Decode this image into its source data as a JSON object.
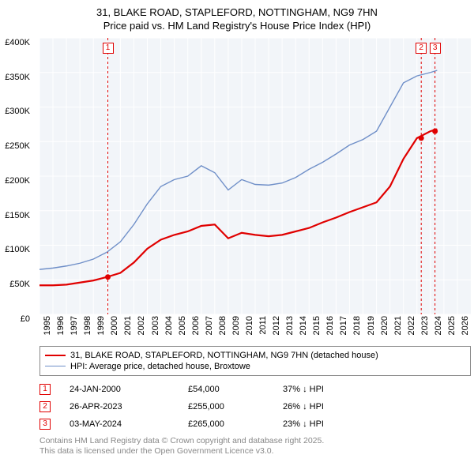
{
  "title_line1": "31, BLAKE ROAD, STAPLEFORD, NOTTINGHAM, NG9 7HN",
  "title_line2": "Price paid vs. HM Land Registry's House Price Index (HPI)",
  "chart": {
    "type": "line",
    "background_color": "#f2f5f9",
    "grid_color": "#ffffff",
    "x_start": 1995,
    "x_end": 2027,
    "x_ticks": [
      1995,
      1996,
      1997,
      1998,
      1999,
      2000,
      2001,
      2002,
      2003,
      2004,
      2005,
      2006,
      2007,
      2008,
      2009,
      2010,
      2011,
      2012,
      2013,
      2014,
      2015,
      2016,
      2017,
      2018,
      2019,
      2020,
      2021,
      2022,
      2023,
      2024,
      2025,
      2026
    ],
    "y_min": 0,
    "y_max": 400000,
    "y_ticks": [
      0,
      50000,
      100000,
      150000,
      200000,
      250000,
      300000,
      350000,
      400000
    ],
    "y_tick_labels": [
      "£0",
      "£50K",
      "£100K",
      "£150K",
      "£200K",
      "£250K",
      "£300K",
      "£350K",
      "£400K"
    ],
    "series": [
      {
        "name": "red",
        "label": "31, BLAKE ROAD, STAPLEFORD, NOTTINGHAM, NG9 7HN (detached house)",
        "color": "#e00000",
        "width": 2.2,
        "data": [
          [
            1995,
            42000
          ],
          [
            1996,
            42000
          ],
          [
            1997,
            43000
          ],
          [
            1998,
            46000
          ],
          [
            1999,
            49000
          ],
          [
            2000,
            54000
          ],
          [
            2001,
            60000
          ],
          [
            2002,
            75000
          ],
          [
            2003,
            95000
          ],
          [
            2004,
            108000
          ],
          [
            2005,
            115000
          ],
          [
            2006,
            120000
          ],
          [
            2007,
            128000
          ],
          [
            2008,
            130000
          ],
          [
            2009,
            110000
          ],
          [
            2010,
            118000
          ],
          [
            2011,
            115000
          ],
          [
            2012,
            113000
          ],
          [
            2013,
            115000
          ],
          [
            2014,
            120000
          ],
          [
            2015,
            125000
          ],
          [
            2016,
            133000
          ],
          [
            2017,
            140000
          ],
          [
            2018,
            148000
          ],
          [
            2019,
            155000
          ],
          [
            2020,
            162000
          ],
          [
            2021,
            185000
          ],
          [
            2022,
            225000
          ],
          [
            2023,
            255000
          ],
          [
            2024,
            265000
          ],
          [
            2024.5,
            268000
          ]
        ]
      },
      {
        "name": "blue",
        "label": "HPI: Average price, detached house, Broxtowe",
        "color": "#6f8fc8",
        "width": 1.4,
        "data": [
          [
            1995,
            65000
          ],
          [
            1996,
            67000
          ],
          [
            1997,
            70000
          ],
          [
            1998,
            74000
          ],
          [
            1999,
            80000
          ],
          [
            2000,
            90000
          ],
          [
            2001,
            105000
          ],
          [
            2002,
            130000
          ],
          [
            2003,
            160000
          ],
          [
            2004,
            185000
          ],
          [
            2005,
            195000
          ],
          [
            2006,
            200000
          ],
          [
            2007,
            215000
          ],
          [
            2008,
            205000
          ],
          [
            2009,
            180000
          ],
          [
            2010,
            195000
          ],
          [
            2011,
            188000
          ],
          [
            2012,
            187000
          ],
          [
            2013,
            190000
          ],
          [
            2014,
            198000
          ],
          [
            2015,
            210000
          ],
          [
            2016,
            220000
          ],
          [
            2017,
            232000
          ],
          [
            2018,
            245000
          ],
          [
            2019,
            253000
          ],
          [
            2020,
            265000
          ],
          [
            2021,
            300000
          ],
          [
            2022,
            335000
          ],
          [
            2023,
            345000
          ],
          [
            2024,
            350000
          ],
          [
            2024.5,
            353000
          ]
        ]
      }
    ],
    "sale_markers": [
      {
        "n": "1",
        "x": 2000.07,
        "y": 54000
      },
      {
        "n": "2",
        "x": 2023.32,
        "y": 255000
      },
      {
        "n": "3",
        "x": 2024.34,
        "y": 265000
      }
    ]
  },
  "legend": {
    "items": [
      {
        "color": "#e00000",
        "width": 2.2,
        "label": "31, BLAKE ROAD, STAPLEFORD, NOTTINGHAM, NG9 7HN (detached house)"
      },
      {
        "color": "#6f8fc8",
        "width": 1.4,
        "label": "HPI: Average price, detached house, Broxtowe"
      }
    ]
  },
  "sales": [
    {
      "n": "1",
      "date": "24-JAN-2000",
      "price": "£54,000",
      "diff": "37% ↓ HPI"
    },
    {
      "n": "2",
      "date": "26-APR-2023",
      "price": "£255,000",
      "diff": "26% ↓ HPI"
    },
    {
      "n": "3",
      "date": "03-MAY-2024",
      "price": "£265,000",
      "diff": "23% ↓ HPI"
    }
  ],
  "footer_line1": "Contains HM Land Registry data © Crown copyright and database right 2025.",
  "footer_line2": "This data is licensed under the Open Government Licence v3.0."
}
